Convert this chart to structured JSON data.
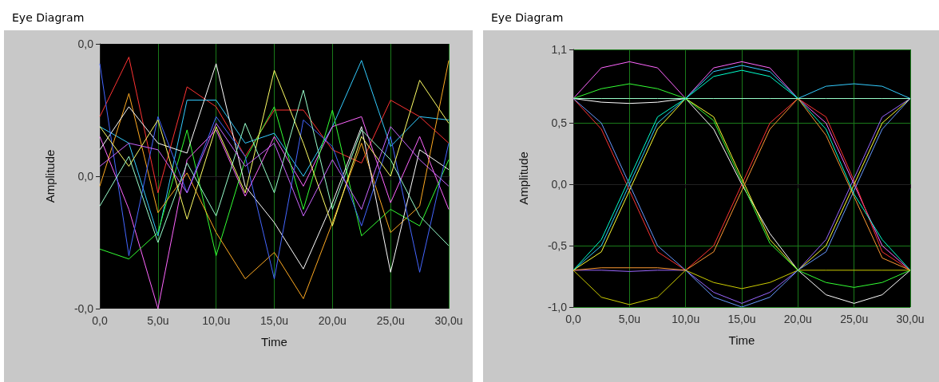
{
  "chart_data": [
    {
      "type": "line",
      "title": "Eye Diagram",
      "xlabel": "Time",
      "ylabel": "Amplitude",
      "marker": "none",
      "line_style": "solid",
      "grid": "x",
      "x": [
        0,
        2.5,
        5,
        7.5,
        10,
        12.5,
        15,
        17.5,
        20,
        22.5,
        25,
        27.5,
        30
      ],
      "xlim": [
        0,
        30
      ],
      "xticks": [
        {
          "value": 0,
          "label": "0,0"
        },
        {
          "value": 5,
          "label": "5,0u"
        },
        {
          "value": 10,
          "label": "10,0u"
        },
        {
          "value": 15,
          "label": "15,0u"
        },
        {
          "value": 20,
          "label": "20,0u"
        },
        {
          "value": 25,
          "label": "25,0u"
        },
        {
          "value": 30,
          "label": "30,0u"
        }
      ],
      "ylim": [
        -0.04,
        0.04
      ],
      "yticks": [
        {
          "value": 0.04,
          "label": "0,0"
        },
        {
          "value": 0,
          "label": "0,0"
        },
        {
          "value": -0.04,
          "label": "-0,0"
        }
      ],
      "series": [
        {
          "color": "#ff3333",
          "values": [
            0.018,
            0.036,
            -0.005,
            0.027,
            0.021,
            0.006,
            0.02,
            0.02,
            0.008,
            0.004,
            0.023,
            0.018,
            0.01
          ]
        },
        {
          "color": "#33ccff",
          "values": [
            0.015,
            0.01,
            -0.018,
            0.023,
            0.023,
            0.01,
            0.013,
            0.0,
            0.015,
            0.035,
            0.009,
            0.018,
            0.017
          ]
        },
        {
          "color": "#ff66ff",
          "values": [
            0.012,
            -0.01,
            -0.04,
            0.005,
            0.014,
            -0.006,
            0.012,
            -0.003,
            0.015,
            0.018,
            -0.008,
            0.012,
            -0.01
          ]
        },
        {
          "color": "#33ff33",
          "values": [
            -0.022,
            -0.025,
            -0.017,
            0.014,
            -0.024,
            0.005,
            0.021,
            -0.01,
            0.02,
            -0.018,
            -0.01,
            -0.015,
            0.005
          ]
        },
        {
          "color": "#ffaa22",
          "values": [
            -0.003,
            0.025,
            -0.011,
            0.001,
            -0.017,
            -0.031,
            -0.023,
            -0.037,
            -0.014,
            0.01,
            -0.017,
            -0.009,
            0.035
          ]
        },
        {
          "color": "#ffffff",
          "values": [
            0.008,
            0.021,
            0.01,
            0.007,
            0.034,
            -0.003,
            -0.014,
            -0.028,
            -0.008,
            0.015,
            -0.029,
            0.008,
            0.002
          ]
        },
        {
          "color": "#4466ff",
          "values": [
            0.034,
            -0.024,
            0.018,
            -0.005,
            0.018,
            0.006,
            -0.031,
            0.017,
            0.009,
            -0.015,
            0.012,
            -0.029,
            0.01
          ]
        },
        {
          "color": "#ffff66",
          "values": [
            0.015,
            0.003,
            0.017,
            -0.013,
            0.015,
            -0.005,
            0.032,
            0.01,
            -0.015,
            0.012,
            0.0,
            0.029,
            0.016
          ]
        },
        {
          "color": "#99ffcc",
          "values": [
            -0.009,
            0.006,
            -0.02,
            0.004,
            -0.012,
            0.016,
            -0.005,
            0.026,
            -0.01,
            0.014,
            0.005,
            -0.012,
            -0.021
          ]
        },
        {
          "color": "#cc66ff",
          "values": [
            0.003,
            0.01,
            0.008,
            -0.005,
            0.016,
            0.003,
            0.01,
            -0.012,
            0.005,
            -0.01,
            0.015,
            0.005,
            -0.003
          ]
        }
      ]
    },
    {
      "type": "line",
      "title": "Eye Diagram",
      "xlabel": "Time",
      "ylabel": "Amplitude",
      "marker": "none",
      "line_style": "solid",
      "grid": true,
      "x": [
        0,
        2.5,
        5,
        7.5,
        10,
        12.5,
        15,
        17.5,
        20,
        22.5,
        25,
        27.5,
        30
      ],
      "xlim": [
        0,
        30
      ],
      "xticks": [
        {
          "value": 0,
          "label": "0,0"
        },
        {
          "value": 5,
          "label": "5,0u"
        },
        {
          "value": 10,
          "label": "10,0u"
        },
        {
          "value": 15,
          "label": "15,0u"
        },
        {
          "value": 20,
          "label": "20,0u"
        },
        {
          "value": 25,
          "label": "25,0u"
        },
        {
          "value": 30,
          "label": "30,0u"
        }
      ],
      "ylim": [
        -1.0,
        1.1
      ],
      "yticks": [
        {
          "value": 1.1,
          "label": "1,1"
        },
        {
          "value": 0.5,
          "label": "0,5"
        },
        {
          "value": 0,
          "label": "0,0"
        },
        {
          "value": -0.5,
          "label": "-0,5"
        },
        {
          "value": -1.0,
          "label": "-1,0"
        }
      ],
      "series": [
        {
          "color": "#ff66ff",
          "values": [
            0.7,
            0.95,
            1.0,
            0.95,
            0.7,
            0.95,
            1.0,
            0.95,
            0.7,
            0.5,
            0,
            -0.5,
            -0.7
          ]
        },
        {
          "color": "#ffffff",
          "values": [
            0.7,
            0.67,
            0.66,
            0.67,
            0.7,
            0.45,
            0,
            -0.4,
            -0.7,
            -0.9,
            -0.97,
            -0.9,
            -0.7
          ]
        },
        {
          "color": "#33ccff",
          "values": [
            -0.7,
            -0.5,
            0,
            0.5,
            0.7,
            0.92,
            0.97,
            0.92,
            0.7,
            0.8,
            0.82,
            0.8,
            0.7
          ]
        },
        {
          "color": "#9966ff",
          "values": [
            -0.7,
            -0.7,
            -0.71,
            -0.7,
            -0.7,
            -0.88,
            -0.97,
            -0.88,
            -0.7,
            -0.45,
            0.05,
            0.55,
            0.7
          ]
        },
        {
          "color": "#ff3333",
          "values": [
            0.7,
            0.45,
            -0.05,
            -0.55,
            -0.7,
            -0.5,
            0,
            0.5,
            0.7,
            0.55,
            0.03,
            -0.55,
            -0.7
          ]
        },
        {
          "color": "#ffff33",
          "values": [
            -0.7,
            -0.55,
            -0.05,
            0.45,
            0.7,
            0.55,
            0.05,
            -0.45,
            -0.7,
            -0.5,
            0,
            0.5,
            0.7
          ]
        },
        {
          "color": "#33ff33",
          "values": [
            0.7,
            0.78,
            0.82,
            0.78,
            0.7,
            0.52,
            0.02,
            -0.48,
            -0.7,
            -0.8,
            -0.84,
            -0.8,
            -0.7
          ]
        },
        {
          "color": "#cccc00",
          "values": [
            -0.7,
            -0.92,
            -0.98,
            -0.92,
            -0.7,
            -0.8,
            -0.85,
            -0.8,
            -0.7,
            -0.7,
            -0.7,
            -0.7,
            -0.7
          ]
        },
        {
          "color": "#99ffcc",
          "values": [
            0.7,
            0.7,
            0.7,
            0.7,
            0.7,
            0.7,
            0.7,
            0.7,
            0.7,
            0.7,
            0.7,
            0.7,
            0.7
          ]
        },
        {
          "color": "#00ffcc",
          "values": [
            -0.7,
            -0.45,
            0.05,
            0.55,
            0.7,
            0.88,
            0.93,
            0.88,
            0.7,
            0.45,
            -0.08,
            -0.45,
            -0.7
          ]
        },
        {
          "color": "#6699ff",
          "values": [
            0.7,
            0.5,
            0,
            -0.5,
            -0.7,
            -0.92,
            -1.0,
            -0.92,
            -0.7,
            -0.55,
            -0.05,
            0.45,
            0.7
          ]
        },
        {
          "color": "#ff9933",
          "values": [
            -0.7,
            -0.68,
            -0.68,
            -0.68,
            -0.7,
            -0.55,
            -0.05,
            0.45,
            0.7,
            0.4,
            -0.1,
            -0.6,
            -0.7
          ]
        }
      ]
    }
  ]
}
